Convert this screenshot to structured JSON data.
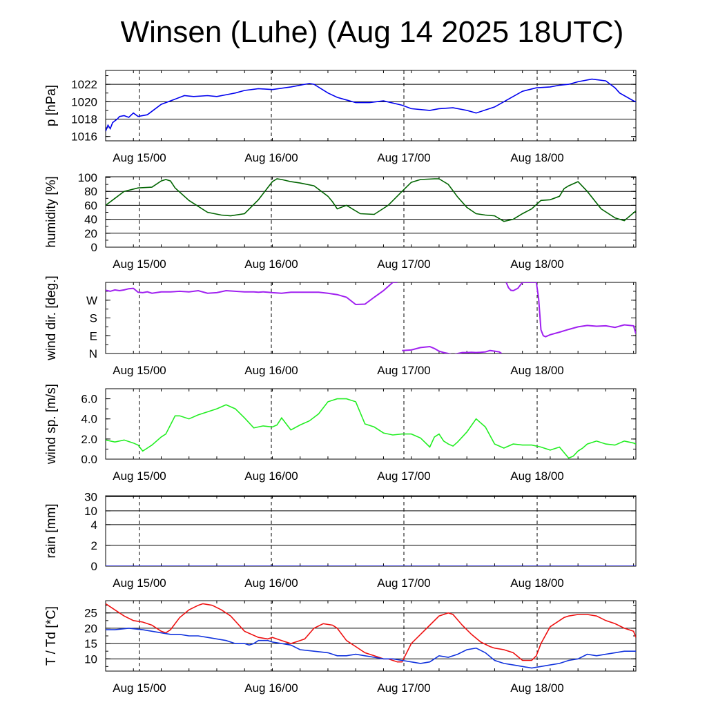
{
  "title": "Winsen (Luhe) (Aug 14 2025 18UTC)",
  "colors": {
    "pressure": "#0000ee",
    "humidity": "#006400",
    "wind_dir": "#a020f0",
    "wind_speed": "#22ee22",
    "rain": "#0000cc",
    "temperature": "#ee1111",
    "dewpoint": "#1133dd",
    "grid": "#000000"
  },
  "time_labels": [
    "Aug 15/00",
    "Aug 16/00",
    "Aug 17/00",
    "Aug 18/00"
  ],
  "chart_data": [
    {
      "type": "line",
      "ylabel": "p [hPa]",
      "ylim": [
        1015.5,
        1023.6
      ],
      "yticks": [
        1016,
        1018,
        1020,
        1022
      ],
      "ytick_labels": [
        "1016",
        "1018",
        "1020",
        "1022"
      ],
      "gridlines": [
        1018,
        1020,
        1022
      ],
      "series": [
        {
          "color_key": "pressure",
          "x": [
            0,
            0.5,
            1,
            1.5,
            2,
            2.5,
            3,
            4,
            5,
            6,
            7,
            9,
            10,
            12,
            15,
            17,
            19,
            22,
            24,
            27,
            28,
            30,
            33,
            36,
            40,
            44,
            45,
            48,
            50,
            52,
            54,
            57,
            60,
            64,
            66,
            70,
            72,
            75,
            78,
            80,
            84,
            87,
            90,
            93,
            96,
            98,
            100,
            102,
            105,
            108,
            110,
            111,
            114,
            114.5
          ],
          "y": [
            1016.6,
            1017.3,
            1016.9,
            1017.6,
            1017.8,
            1018.0,
            1018.3,
            1018.4,
            1018.2,
            1018.7,
            1018.3,
            1018.5,
            1018.9,
            1019.7,
            1020.3,
            1020.7,
            1020.6,
            1020.7,
            1020.6,
            1020.9,
            1021.0,
            1021.3,
            1021.5,
            1021.4,
            1021.7,
            1022.1,
            1022.0,
            1021.0,
            1020.5,
            1020.2,
            1019.9,
            1019.9,
            1020.1,
            1019.6,
            1019.2,
            1019.0,
            1019.2,
            1019.3,
            1019.0,
            1018.7,
            1019.4,
            1020.3,
            1021.2,
            1021.6,
            1021.7,
            1021.9,
            1022.0,
            1022.3,
            1022.6,
            1022.4,
            1021.6,
            1021.0,
            1020.1,
            1020.0
          ]
        }
      ]
    },
    {
      "type": "line",
      "ylabel": "humidity [%]",
      "ylim": [
        0,
        101
      ],
      "yticks": [
        0,
        20,
        40,
        60,
        80,
        100
      ],
      "ytick_labels": [
        "0",
        "20",
        "40",
        "60",
        "80",
        "100"
      ],
      "gridlines": [
        20,
        40,
        60,
        80
      ],
      "series": [
        {
          "color_key": "humidity",
          "x": [
            0,
            2,
            4,
            7,
            10,
            12,
            13,
            14,
            15,
            18,
            22,
            25,
            27,
            30,
            33,
            36,
            37,
            38,
            40,
            42,
            45,
            48,
            49,
            50,
            52,
            55,
            58,
            61,
            64,
            66,
            68,
            71,
            72,
            74,
            76,
            78,
            80,
            82,
            84,
            86,
            88,
            90,
            92,
            94,
            96,
            98,
            99,
            100,
            102,
            104,
            107,
            110,
            112,
            114.5
          ],
          "y": [
            60,
            70,
            80,
            85,
            86,
            95,
            97,
            95,
            85,
            67,
            50,
            46,
            45,
            48,
            68,
            94,
            98,
            97,
            94,
            92,
            88,
            73,
            65,
            55,
            60,
            48,
            47,
            60,
            80,
            93,
            97,
            98,
            98,
            90,
            72,
            57,
            48,
            46,
            45,
            37,
            40,
            48,
            55,
            67,
            68,
            73,
            84,
            88,
            94,
            80,
            55,
            42,
            38,
            52
          ]
        }
      ]
    },
    {
      "type": "scatter",
      "ylabel": "wind dir. [deg.]",
      "ylim": [
        0,
        360
      ],
      "yticks": [
        0,
        90,
        180,
        270
      ],
      "ytick_labels": [
        "N",
        "E",
        "S",
        "W"
      ],
      "gridlines": [],
      "series": [
        {
          "color_key": "wind_dir",
          "x": [
            0,
            1,
            2,
            3,
            4,
            5,
            6,
            7,
            8,
            9,
            10,
            12,
            14,
            16,
            18,
            20,
            22,
            24,
            26,
            28,
            30,
            31,
            32,
            33,
            34,
            35,
            36,
            38,
            40,
            42,
            44,
            46,
            48,
            50,
            52,
            54,
            56,
            58,
            60,
            62,
            63,
            64,
            66,
            68,
            70,
            71,
            72,
            73,
            74,
            75,
            76,
            77,
            78,
            79,
            80,
            81,
            82,
            83,
            84,
            85,
            85.5,
            86.5,
            87,
            87.5,
            88,
            89,
            90,
            91,
            91.5,
            92,
            92.5,
            93,
            93.5,
            94,
            94.5,
            95,
            96,
            98,
            100,
            102,
            104,
            106,
            108,
            110,
            112,
            114,
            114.5
          ],
          "y": [
            320,
            315,
            322,
            318,
            322,
            328,
            330,
            310,
            308,
            312,
            305,
            312,
            312,
            315,
            312,
            318,
            305,
            308,
            318,
            315,
            312,
            312,
            312,
            310,
            312,
            310,
            308,
            305,
            310,
            310,
            310,
            310,
            305,
            298,
            285,
            248,
            250,
            285,
            318,
            360,
            360,
            15,
            18,
            30,
            35,
            25,
            12,
            5,
            0,
            -5,
            0,
            5,
            5,
            6,
            5,
            6,
            8,
            15,
            12,
            8,
            0,
            360,
            333,
            320,
            318,
            330,
            360,
            360,
            360,
            360,
            360,
            360,
            280,
            120,
            90,
            85,
            95,
            108,
            122,
            135,
            142,
            138,
            140,
            132,
            145,
            140,
            100
          ]
        }
      ]
    },
    {
      "type": "line",
      "ylabel": "wind sp. [m/s]",
      "ylim": [
        0,
        7.0
      ],
      "yticks": [
        0,
        2,
        4,
        6
      ],
      "ytick_labels": [
        "0.0",
        "2.0",
        "4.0",
        "6.0"
      ],
      "gridlines": [],
      "series": [
        {
          "color_key": "wind_speed",
          "x": [
            0,
            2,
            4,
            6,
            7,
            8,
            9,
            10,
            12,
            13,
            15,
            16,
            18,
            20,
            22,
            24,
            26,
            28,
            30,
            32,
            34,
            36,
            37,
            38,
            40,
            42,
            44,
            46,
            48,
            50,
            52,
            54,
            56,
            58,
            60,
            62,
            64,
            66,
            68,
            70,
            71,
            72,
            73,
            74,
            75,
            76,
            78,
            80,
            82,
            84,
            86,
            88,
            90,
            92,
            94,
            96,
            98,
            100,
            101,
            102,
            103,
            104,
            106,
            108,
            110,
            112,
            114,
            114.5
          ],
          "y": [
            1.9,
            1.7,
            1.9,
            1.6,
            1.4,
            0.8,
            1.1,
            1.4,
            2.2,
            2.5,
            4.3,
            4.3,
            4.0,
            4.4,
            4.7,
            5.0,
            5.4,
            5.0,
            4.1,
            3.1,
            3.3,
            3.2,
            3.4,
            4.1,
            2.9,
            3.4,
            3.8,
            4.5,
            5.7,
            6.0,
            6.0,
            5.7,
            3.5,
            3.2,
            2.6,
            2.4,
            2.5,
            2.5,
            2.1,
            1.2,
            2.2,
            2.5,
            1.8,
            1.5,
            1.3,
            1.7,
            2.7,
            4.0,
            3.2,
            1.5,
            1.1,
            1.5,
            1.4,
            1.4,
            1.2,
            0.9,
            1.2,
            0.1,
            0.3,
            0.8,
            1.1,
            1.5,
            1.8,
            1.5,
            1.4,
            1.8,
            1.6,
            1.5
          ]
        }
      ]
    },
    {
      "type": "line",
      "ylabel": "rain [mm]",
      "ylim": [
        0,
        31
      ],
      "yticks": [
        0,
        2,
        4,
        10,
        30
      ],
      "ytick_labels": [
        "0",
        "2",
        "4",
        "10",
        "30"
      ],
      "gridlines": [
        2,
        4,
        10,
        30
      ],
      "scale": "nonlinear",
      "series": [
        {
          "color_key": "rain",
          "x": [
            0,
            114.5
          ],
          "y": [
            0,
            0
          ]
        }
      ]
    },
    {
      "type": "line",
      "ylabel": "T / Td [*C]",
      "ylim": [
        6,
        29
      ],
      "yticks": [
        10,
        15,
        20,
        25
      ],
      "ytick_labels": [
        "10",
        "15",
        "20",
        "25"
      ],
      "gridlines": [
        10,
        15,
        20,
        25
      ],
      "series": [
        {
          "color_key": "temperature",
          "x": [
            0,
            2,
            4,
            6,
            8,
            10,
            11,
            12,
            13,
            14,
            16,
            18,
            20,
            21,
            23,
            25,
            27,
            30,
            33,
            35,
            36,
            38,
            40,
            42,
            43,
            45,
            47,
            49,
            50,
            52,
            54,
            56,
            58,
            60,
            61,
            62,
            63,
            64,
            66,
            68,
            70,
            72,
            74,
            75,
            77,
            79,
            81,
            83,
            84,
            86,
            88,
            90,
            92,
            93,
            94,
            96,
            98,
            99,
            100,
            102,
            104,
            106,
            108,
            110,
            112,
            114,
            114.5
          ],
          "y": [
            28,
            26,
            24,
            22.5,
            22,
            21,
            20,
            19,
            18.5,
            19.5,
            23.5,
            26,
            27.5,
            28,
            27.5,
            26,
            24,
            19,
            17,
            16.5,
            17,
            16,
            15,
            16,
            16.5,
            20,
            21.5,
            21,
            20,
            16,
            14,
            12,
            11,
            10,
            10,
            9.5,
            9,
            9,
            15,
            18,
            21,
            24,
            25,
            24.5,
            21,
            18,
            15.5,
            14,
            13.5,
            13,
            12,
            9.5,
            9.5,
            11,
            15,
            20.5,
            22.5,
            23.5,
            24,
            24.5,
            24.5,
            24,
            22.5,
            21.5,
            20,
            19,
            17
          ]
        },
        {
          "color_key": "dewpoint",
          "x": [
            0,
            2,
            5,
            8,
            10,
            12,
            14,
            16,
            18,
            20,
            22,
            24,
            26,
            28,
            30,
            31,
            32,
            33,
            35,
            36,
            38,
            40,
            42,
            45,
            48,
            50,
            52,
            54,
            56,
            58,
            60,
            62,
            64,
            66,
            68,
            70,
            71,
            72,
            74,
            76,
            78,
            80,
            82,
            84,
            86,
            88,
            90,
            92,
            94,
            96,
            98,
            100,
            102,
            104,
            106,
            108,
            110,
            112,
            114,
            114.5
          ],
          "y": [
            19.5,
            19.5,
            20,
            19.5,
            19,
            18.5,
            18,
            18,
            17.5,
            17.5,
            17,
            16.5,
            16,
            15,
            15,
            14.5,
            15,
            16,
            16,
            15.5,
            15,
            14.5,
            13,
            12.5,
            12,
            11,
            11,
            11.5,
            11,
            10.5,
            10,
            10,
            9.5,
            9,
            8.5,
            9,
            10,
            11,
            10.5,
            11.5,
            13,
            13.5,
            12,
            9.5,
            8.5,
            8,
            7.5,
            7,
            7.5,
            8,
            8.5,
            9.5,
            10,
            11.5,
            11,
            11.5,
            12,
            12.5,
            12.5,
            12.5
          ]
        }
      ]
    }
  ]
}
